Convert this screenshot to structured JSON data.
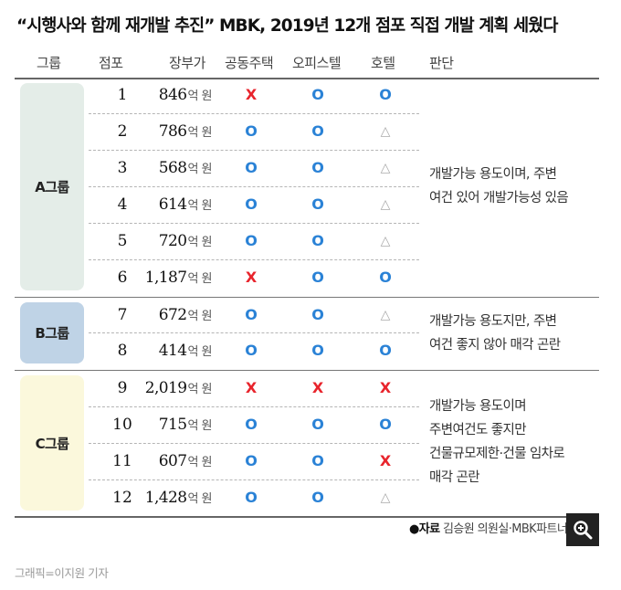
{
  "title": "“시행사와 함께 재개발 추진” MBK, 2019년 12개 점포 직접 개발 계획 세웠다",
  "headers": {
    "group": "그룹",
    "store": "점포",
    "book_value": "장부가",
    "apartment": "공동주택",
    "officetel": "오피스텔",
    "hotel": "호텔",
    "judgment": "판단"
  },
  "unit": "억 원",
  "marks": {
    "o": "O",
    "x": "X",
    "t": "△"
  },
  "groups": [
    {
      "label": "A그룹",
      "color": "#e4ede8",
      "judgment": "개발가능 용도이며, 주변\n여건 있어 개발가능성 있음"
    },
    {
      "label": "B그룹",
      "color": "#bfd3e6",
      "judgment": "개발가능 용도지만, 주변\n여건 좋지 않아 매각 곤란"
    },
    {
      "label": "C그룹",
      "color": "#fbf8dc",
      "judgment": "개발가능 용도이며\n주변여건도 좋지만\n건물규모제한·건물 임차로\n매각 곤란"
    }
  ],
  "rows": [
    {
      "no": "1",
      "value": "846",
      "apartment": "x",
      "officetel": "o",
      "hotel": "o"
    },
    {
      "no": "2",
      "value": "786",
      "apartment": "o",
      "officetel": "o",
      "hotel": "t"
    },
    {
      "no": "3",
      "value": "568",
      "apartment": "o",
      "officetel": "o",
      "hotel": "t"
    },
    {
      "no": "4",
      "value": "614",
      "apartment": "o",
      "officetel": "o",
      "hotel": "t"
    },
    {
      "no": "5",
      "value": "720",
      "apartment": "o",
      "officetel": "o",
      "hotel": "t"
    },
    {
      "no": "6",
      "value": "1,187",
      "apartment": "x",
      "officetel": "o",
      "hotel": "o"
    },
    {
      "no": "7",
      "value": "672",
      "apartment": "o",
      "officetel": "o",
      "hotel": "t"
    },
    {
      "no": "8",
      "value": "414",
      "apartment": "o",
      "officetel": "o",
      "hotel": "o"
    },
    {
      "no": "9",
      "value": "2,019",
      "apartment": "x",
      "officetel": "x",
      "hotel": "x"
    },
    {
      "no": "10",
      "value": "715",
      "apartment": "o",
      "officetel": "o",
      "hotel": "o"
    },
    {
      "no": "11",
      "value": "607",
      "apartment": "o",
      "officetel": "o",
      "hotel": "x"
    },
    {
      "no": "12",
      "value": "1,428",
      "apartment": "o",
      "officetel": "o",
      "hotel": "t"
    }
  ],
  "source": {
    "label": "●자료",
    "text": "김승원 의원실·MBK파트너스"
  },
  "credit": "그래픽=이지원 기자",
  "zoom_icon": "zoom-in-icon"
}
